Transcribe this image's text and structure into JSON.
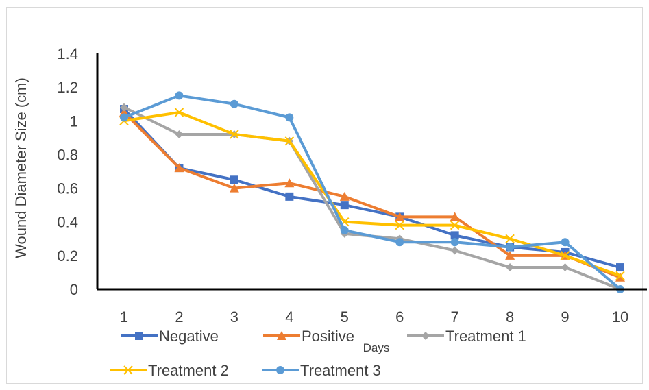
{
  "chart_data": {
    "type": "line",
    "title": "",
    "xlabel": "Days",
    "ylabel": "Wound Diameter Size (cm)",
    "ylim": [
      0,
      1.4
    ],
    "yticks": [
      "0",
      "0.2",
      "0.4",
      "0.6",
      "0.8",
      "1",
      "1.2",
      "1.4"
    ],
    "categories": [
      "1",
      "2",
      "3",
      "4",
      "5",
      "6",
      "7",
      "8",
      "9",
      "10"
    ],
    "grid": false,
    "legend_position": "bottom",
    "series": [
      {
        "name": "Negative",
        "color": "#4472C4",
        "marker": "square",
        "values": [
          1.07,
          0.72,
          0.65,
          0.55,
          0.5,
          0.43,
          0.32,
          0.25,
          0.22,
          0.13
        ]
      },
      {
        "name": "Positive",
        "color": "#ED7D31",
        "marker": "triangle",
        "values": [
          1.05,
          0.72,
          0.6,
          0.63,
          0.55,
          0.43,
          0.43,
          0.2,
          0.2,
          0.07
        ]
      },
      {
        "name": "Treatment 1",
        "color": "#A5A5A5",
        "marker": "diamond",
        "values": [
          1.08,
          0.92,
          0.92,
          0.88,
          0.33,
          0.3,
          0.23,
          0.13,
          0.13,
          0.0
        ]
      },
      {
        "name": "Treatment 2",
        "color": "#FFC000",
        "marker": "x",
        "values": [
          1.0,
          1.05,
          0.92,
          0.88,
          0.4,
          0.38,
          0.38,
          0.3,
          0.2,
          0.08
        ]
      },
      {
        "name": "Treatment 3",
        "color": "#5B9BD5",
        "marker": "circle",
        "values": [
          1.02,
          1.15,
          1.1,
          1.02,
          0.35,
          0.28,
          0.28,
          0.25,
          0.28,
          0.0
        ]
      }
    ]
  }
}
